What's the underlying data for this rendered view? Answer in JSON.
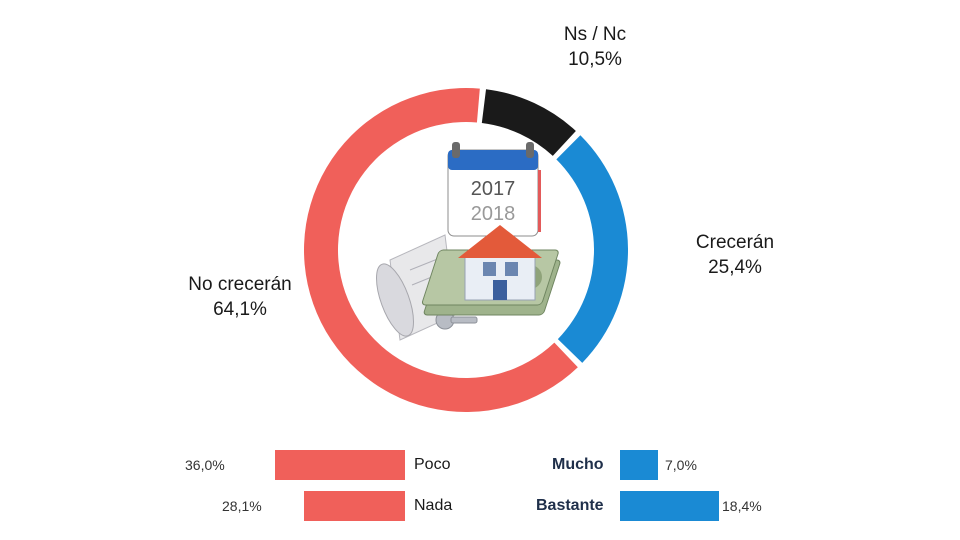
{
  "chart_data": [
    {
      "type": "pie",
      "style": "donut",
      "slices": [
        {
          "label": "Ns / Nc",
          "value_label": "10,5%",
          "value": 10.5,
          "color": "#1a1a1a"
        },
        {
          "label": "Crecerán",
          "value_label": "25,4%",
          "value": 25.4,
          "color": "#1a8ad4"
        },
        {
          "label": "No crecerán",
          "value_label": "64,1%",
          "value": 64.1,
          "color": "#f0605a"
        }
      ]
    },
    {
      "type": "bar",
      "orientation": "horizontal",
      "series_color": "#f0605a",
      "categories": [
        "Poco",
        "Nada"
      ],
      "values": [
        36.0,
        28.1
      ],
      "value_labels": [
        "36,0%",
        "28,1%"
      ]
    },
    {
      "type": "bar",
      "orientation": "horizontal",
      "series_color": "#1a8ad4",
      "categories": [
        "Mucho",
        "Bastante"
      ],
      "values": [
        7.0,
        18.4
      ],
      "value_labels": [
        "7,0%",
        "18,4%"
      ]
    }
  ],
  "center_image": {
    "calendar_years": [
      "2017",
      "2018"
    ],
    "icons": [
      "calendar-icon",
      "house-icon",
      "money-stack-icon",
      "keys-icon",
      "blueprint-roll-icon"
    ]
  }
}
